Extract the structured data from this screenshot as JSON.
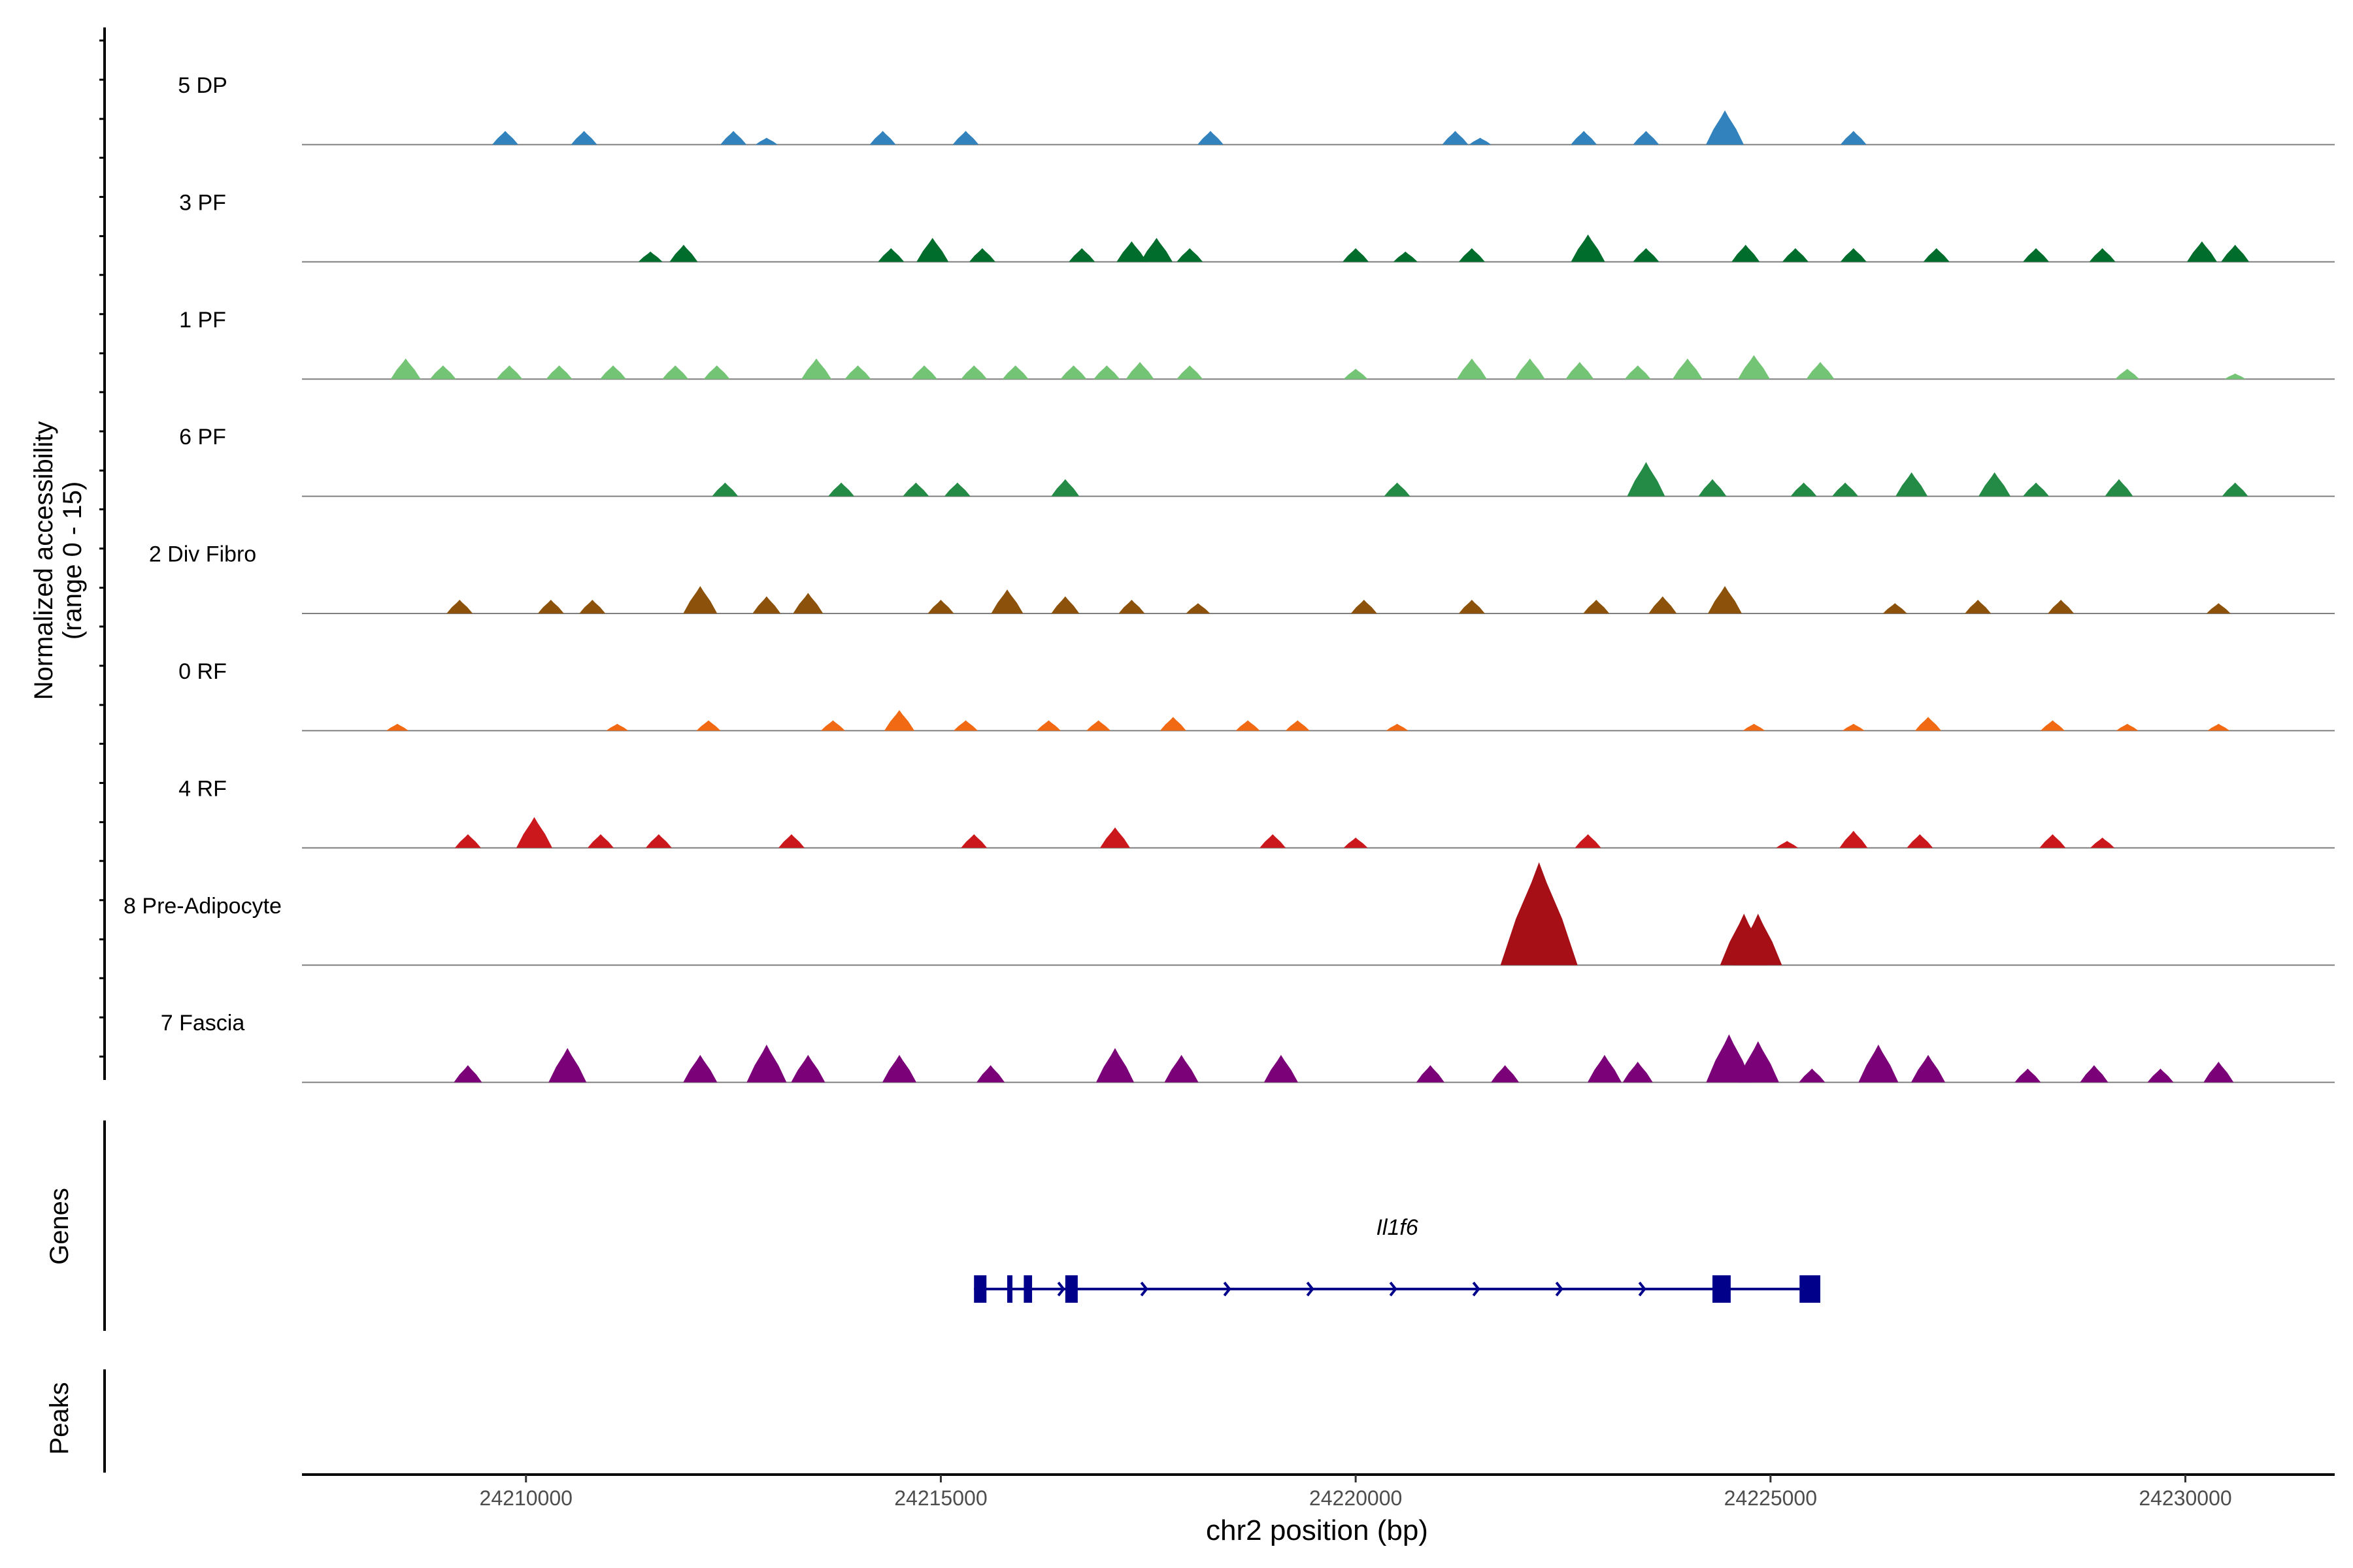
{
  "chart_data": {
    "type": "area",
    "title": "",
    "xlabel": "chr2 position (bp)",
    "ylabel": "Normalized accessibility\n(range 0 - 15)",
    "xlim": [
      24207300,
      24231800
    ],
    "ylim": [
      0,
      15
    ],
    "x_ticks": [
      24210000,
      24215000,
      24220000,
      24225000,
      24230000
    ],
    "x_tick_labels": [
      "24210000",
      "24215000",
      "24220000",
      "24225000",
      "24230000"
    ],
    "tracks": [
      {
        "name": "5 DP",
        "color": "#3182bd",
        "peaks": [
          [
            24209750,
            2
          ],
          [
            24210700,
            2
          ],
          [
            24212500,
            2
          ],
          [
            24212900,
            1
          ],
          [
            24214300,
            2
          ],
          [
            24215300,
            2
          ],
          [
            24218250,
            2
          ],
          [
            24221200,
            2
          ],
          [
            24221500,
            1
          ],
          [
            24222750,
            2
          ],
          [
            24223500,
            2
          ],
          [
            24224450,
            5
          ],
          [
            24226000,
            2
          ]
        ]
      },
      {
        "name": "3 PF",
        "color": "#006d2c",
        "peaks": [
          [
            24211500,
            1.5
          ],
          [
            24211900,
            2.5
          ],
          [
            24214400,
            2
          ],
          [
            24214900,
            3.5
          ],
          [
            24215500,
            2
          ],
          [
            24216700,
            2
          ],
          [
            24217300,
            3
          ],
          [
            24217600,
            3.5
          ],
          [
            24218000,
            2
          ],
          [
            24220000,
            2
          ],
          [
            24220600,
            1.5
          ],
          [
            24221400,
            2
          ],
          [
            24222800,
            4
          ],
          [
            24223500,
            2
          ],
          [
            24224700,
            2.5
          ],
          [
            24225300,
            2
          ],
          [
            24226000,
            2
          ],
          [
            24227000,
            2
          ],
          [
            24228200,
            2
          ],
          [
            24229000,
            2
          ],
          [
            24230200,
            3
          ],
          [
            24230600,
            2.5
          ]
        ]
      },
      {
        "name": "1 PF",
        "color": "#74c476",
        "peaks": [
          [
            24208550,
            3
          ],
          [
            24209000,
            2
          ],
          [
            24209800,
            2
          ],
          [
            24210400,
            2
          ],
          [
            24211050,
            2
          ],
          [
            24211800,
            2
          ],
          [
            24212300,
            2
          ],
          [
            24213500,
            3
          ],
          [
            24214000,
            2
          ],
          [
            24214800,
            2
          ],
          [
            24215400,
            2
          ],
          [
            24215900,
            2
          ],
          [
            24216600,
            2
          ],
          [
            24217000,
            2
          ],
          [
            24217400,
            2.5
          ],
          [
            24218000,
            2
          ],
          [
            24220000,
            1.5
          ],
          [
            24221400,
            3
          ],
          [
            24222100,
            3
          ],
          [
            24222700,
            2.5
          ],
          [
            24223400,
            2
          ],
          [
            24224000,
            3
          ],
          [
            24224800,
            3.5
          ],
          [
            24225600,
            2.5
          ],
          [
            24229300,
            1.5
          ],
          [
            24230600,
            0.8
          ]
        ]
      },
      {
        "name": "6 PF",
        "color": "#238b45",
        "peaks": [
          [
            24212400,
            2
          ],
          [
            24213800,
            2
          ],
          [
            24214700,
            2
          ],
          [
            24215200,
            2
          ],
          [
            24216500,
            2.5
          ],
          [
            24220500,
            2
          ],
          [
            24223500,
            5
          ],
          [
            24224300,
            2.5
          ],
          [
            24225400,
            2
          ],
          [
            24225900,
            2
          ],
          [
            24226700,
            3.5
          ],
          [
            24227700,
            3.5
          ],
          [
            24228200,
            2
          ],
          [
            24229200,
            2.5
          ],
          [
            24230600,
            2
          ]
        ]
      },
      {
        "name": "2 Div Fibro",
        "color": "#8c510a",
        "peaks": [
          [
            24209200,
            2
          ],
          [
            24210300,
            2
          ],
          [
            24210800,
            2
          ],
          [
            24212100,
            4
          ],
          [
            24212900,
            2.5
          ],
          [
            24213400,
            3
          ],
          [
            24215000,
            2
          ],
          [
            24215800,
            3.5
          ],
          [
            24216500,
            2.5
          ],
          [
            24217300,
            2
          ],
          [
            24218100,
            1.5
          ],
          [
            24220100,
            2
          ],
          [
            24221400,
            2
          ],
          [
            24222900,
            2
          ],
          [
            24223700,
            2.5
          ],
          [
            24224450,
            4
          ],
          [
            24226500,
            1.5
          ],
          [
            24227500,
            2
          ],
          [
            24228500,
            2
          ],
          [
            24230400,
            1.5
          ]
        ]
      },
      {
        "name": "0 RF",
        "color": "#f16913",
        "peaks": [
          [
            24208450,
            1
          ],
          [
            24211100,
            1
          ],
          [
            24212200,
            1.5
          ],
          [
            24213700,
            1.5
          ],
          [
            24214500,
            3
          ],
          [
            24215300,
            1.5
          ],
          [
            24216300,
            1.5
          ],
          [
            24216900,
            1.5
          ],
          [
            24217800,
            2
          ],
          [
            24218700,
            1.5
          ],
          [
            24219300,
            1.5
          ],
          [
            24220500,
            1
          ],
          [
            24224800,
            1
          ],
          [
            24226000,
            1
          ],
          [
            24226900,
            2
          ],
          [
            24228400,
            1.5
          ],
          [
            24229300,
            1
          ],
          [
            24230400,
            1
          ]
        ]
      },
      {
        "name": "4 RF",
        "color": "#cb181d",
        "peaks": [
          [
            24209300,
            2
          ],
          [
            24210100,
            4.5
          ],
          [
            24210900,
            2
          ],
          [
            24211600,
            2
          ],
          [
            24213200,
            2
          ],
          [
            24215400,
            2
          ],
          [
            24217100,
            3
          ],
          [
            24219000,
            2
          ],
          [
            24220000,
            1.5
          ],
          [
            24222800,
            2
          ],
          [
            24225200,
            1
          ],
          [
            24226000,
            2.5
          ],
          [
            24226800,
            2
          ],
          [
            24228400,
            2
          ],
          [
            24229000,
            1.5
          ]
        ]
      },
      {
        "name": "8 Pre-Adipocyte",
        "color": "#a50f15",
        "peaks": [
          [
            24222210,
            15
          ],
          [
            24224680,
            7.5
          ],
          [
            24224850,
            7.5
          ]
        ]
      },
      {
        "name": "7 Fascia",
        "color": "#7a0177",
        "peaks": [
          [
            24209300,
            2.5
          ],
          [
            24210500,
            5
          ],
          [
            24212100,
            4
          ],
          [
            24212900,
            5.5
          ],
          [
            24213400,
            4
          ],
          [
            24214500,
            4
          ],
          [
            24215600,
            2.5
          ],
          [
            24217100,
            5
          ],
          [
            24217900,
            4
          ],
          [
            24219100,
            4
          ],
          [
            24220900,
            2.5
          ],
          [
            24221800,
            2.5
          ],
          [
            24223000,
            4
          ],
          [
            24223400,
            3
          ],
          [
            24224500,
            7
          ],
          [
            24224850,
            6
          ],
          [
            24225500,
            2
          ],
          [
            24226300,
            5.5
          ],
          [
            24226900,
            4
          ],
          [
            24228100,
            2
          ],
          [
            24228900,
            2.5
          ],
          [
            24229700,
            2
          ],
          [
            24230400,
            3
          ]
        ]
      }
    ],
    "genes_track": {
      "label": "Genes",
      "gene_name": "Il1f6",
      "gene_start": 24215400,
      "gene_end": 24225600,
      "strand": "+",
      "exons": [
        [
          24215400,
          24215550
        ],
        [
          24215800,
          24215860
        ],
        [
          24216000,
          24216100
        ],
        [
          24216500,
          24216650
        ],
        [
          24224300,
          24224520
        ],
        [
          24225350,
          24225600
        ]
      ]
    },
    "peaks_track": {
      "label": "Peaks",
      "peaks": []
    }
  }
}
